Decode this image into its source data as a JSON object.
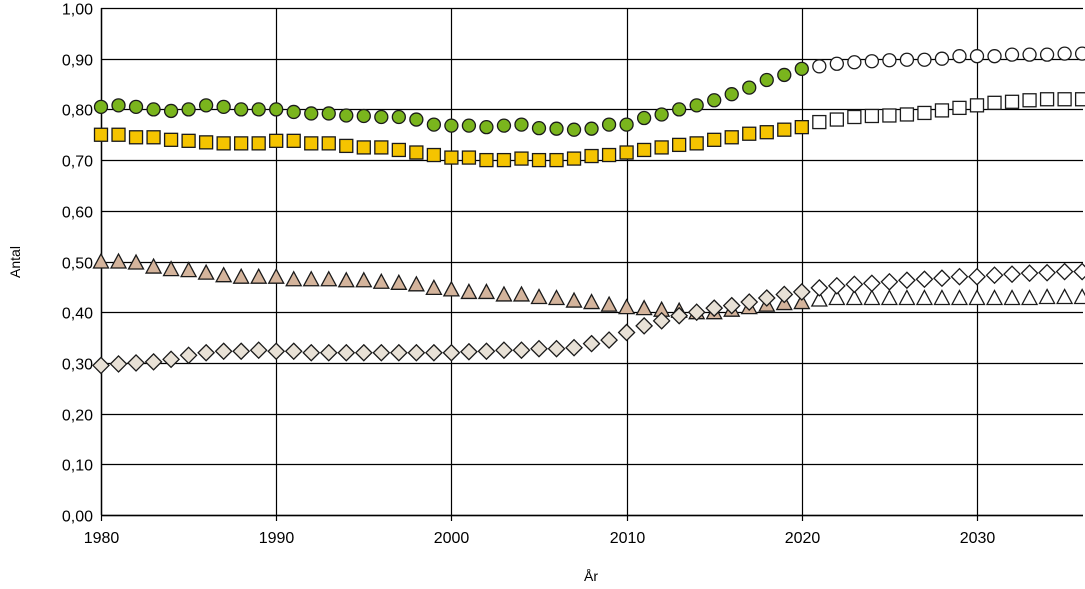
{
  "chart_data": {
    "type": "scatter",
    "xlabel": "År",
    "ylabel": "Antal",
    "xlim": [
      1980,
      2036
    ],
    "ylim": [
      0,
      1
    ],
    "xticks": [
      1980,
      1990,
      2000,
      2010,
      2020,
      2030
    ],
    "yticks": [
      0,
      0.1,
      0.2,
      0.3,
      0.4,
      0.5,
      0.6,
      0.7,
      0.8,
      0.9,
      1.0
    ],
    "ytick_labels": [
      "0,00",
      "0,10",
      "0,20",
      "0,30",
      "0,40",
      "0,50",
      "0,60",
      "0,70",
      "0,80",
      "0,90",
      "1,00"
    ],
    "grid": true,
    "legend": "none",
    "observed_until": 2020,
    "series": [
      {
        "marker": "circle",
        "color": "#7ab51d",
        "x": [
          1980,
          1981,
          1982,
          1983,
          1984,
          1985,
          1986,
          1987,
          1988,
          1989,
          1990,
          1991,
          1992,
          1993,
          1994,
          1995,
          1996,
          1997,
          1998,
          1999,
          2000,
          2001,
          2002,
          2003,
          2004,
          2005,
          2006,
          2007,
          2008,
          2009,
          2010,
          2011,
          2012,
          2013,
          2014,
          2015,
          2016,
          2017,
          2018,
          2019,
          2020,
          2021,
          2022,
          2023,
          2024,
          2025,
          2026,
          2027,
          2028,
          2029,
          2030,
          2031,
          2032,
          2033,
          2034,
          2035,
          2036
        ],
        "y": [
          0.805,
          0.808,
          0.805,
          0.8,
          0.797,
          0.8,
          0.808,
          0.805,
          0.8,
          0.8,
          0.8,
          0.795,
          0.792,
          0.792,
          0.788,
          0.787,
          0.785,
          0.785,
          0.78,
          0.77,
          0.768,
          0.768,
          0.765,
          0.768,
          0.77,
          0.763,
          0.762,
          0.76,
          0.762,
          0.77,
          0.77,
          0.783,
          0.79,
          0.8,
          0.808,
          0.818,
          0.83,
          0.843,
          0.858,
          0.868,
          0.88,
          0.885,
          0.89,
          0.893,
          0.895,
          0.897,
          0.898,
          0.898,
          0.9,
          0.905,
          0.905,
          0.905,
          0.908,
          0.908,
          0.908,
          0.91,
          0.91
        ]
      },
      {
        "marker": "square",
        "color": "#f5c400",
        "x": [
          1980,
          1981,
          1982,
          1983,
          1984,
          1985,
          1986,
          1987,
          1988,
          1989,
          1990,
          1991,
          1992,
          1993,
          1994,
          1995,
          1996,
          1997,
          1998,
          1999,
          2000,
          2001,
          2002,
          2003,
          2004,
          2005,
          2006,
          2007,
          2008,
          2009,
          2010,
          2011,
          2012,
          2013,
          2014,
          2015,
          2016,
          2017,
          2018,
          2019,
          2020,
          2021,
          2022,
          2023,
          2024,
          2025,
          2026,
          2027,
          2028,
          2029,
          2030,
          2031,
          2032,
          2033,
          2034,
          2035,
          2036
        ],
        "y": [
          0.75,
          0.75,
          0.745,
          0.745,
          0.74,
          0.738,
          0.735,
          0.733,
          0.733,
          0.733,
          0.738,
          0.738,
          0.733,
          0.733,
          0.728,
          0.725,
          0.725,
          0.72,
          0.715,
          0.71,
          0.705,
          0.705,
          0.7,
          0.7,
          0.703,
          0.7,
          0.7,
          0.703,
          0.708,
          0.71,
          0.715,
          0.72,
          0.725,
          0.73,
          0.733,
          0.74,
          0.745,
          0.752,
          0.755,
          0.76,
          0.765,
          0.775,
          0.78,
          0.785,
          0.787,
          0.788,
          0.79,
          0.793,
          0.798,
          0.803,
          0.808,
          0.813,
          0.815,
          0.818,
          0.82,
          0.82,
          0.82
        ]
      },
      {
        "marker": "triangle",
        "color": "#d4b49c",
        "x": [
          1980,
          1981,
          1982,
          1983,
          1984,
          1985,
          1986,
          1987,
          1988,
          1989,
          1990,
          1991,
          1992,
          1993,
          1994,
          1995,
          1996,
          1997,
          1998,
          1999,
          2000,
          2001,
          2002,
          2003,
          2004,
          2005,
          2006,
          2007,
          2008,
          2009,
          2010,
          2011,
          2012,
          2013,
          2014,
          2015,
          2016,
          2017,
          2018,
          2019,
          2020,
          2021,
          2022,
          2023,
          2024,
          2025,
          2026,
          2027,
          2028,
          2029,
          2030,
          2031,
          2032,
          2033,
          2034,
          2035,
          2036
        ],
        "y": [
          0.5,
          0.5,
          0.498,
          0.49,
          0.485,
          0.483,
          0.478,
          0.473,
          0.47,
          0.47,
          0.47,
          0.465,
          0.465,
          0.465,
          0.463,
          0.463,
          0.46,
          0.458,
          0.455,
          0.448,
          0.445,
          0.44,
          0.44,
          0.435,
          0.435,
          0.43,
          0.428,
          0.423,
          0.42,
          0.415,
          0.41,
          0.408,
          0.405,
          0.403,
          0.4,
          0.4,
          0.405,
          0.41,
          0.415,
          0.418,
          0.42,
          0.425,
          0.428,
          0.428,
          0.428,
          0.428,
          0.428,
          0.428,
          0.428,
          0.428,
          0.428,
          0.428,
          0.428,
          0.428,
          0.43,
          0.43,
          0.43
        ]
      },
      {
        "marker": "diamond",
        "color": "#e8e1d6",
        "x": [
          1980,
          1981,
          1982,
          1983,
          1984,
          1985,
          1986,
          1987,
          1988,
          1989,
          1990,
          1991,
          1992,
          1993,
          1994,
          1995,
          1996,
          1997,
          1998,
          1999,
          2000,
          2001,
          2002,
          2003,
          2004,
          2005,
          2006,
          2007,
          2008,
          2009,
          2010,
          2011,
          2012,
          2013,
          2014,
          2015,
          2016,
          2017,
          2018,
          2019,
          2020,
          2021,
          2022,
          2023,
          2024,
          2025,
          2026,
          2027,
          2028,
          2029,
          2030,
          2031,
          2032,
          2033,
          2034,
          2035,
          2036
        ],
        "y": [
          0.295,
          0.298,
          0.3,
          0.302,
          0.307,
          0.315,
          0.32,
          0.323,
          0.323,
          0.325,
          0.323,
          0.323,
          0.32,
          0.32,
          0.32,
          0.32,
          0.32,
          0.32,
          0.32,
          0.32,
          0.32,
          0.322,
          0.323,
          0.325,
          0.325,
          0.328,
          0.328,
          0.33,
          0.338,
          0.345,
          0.36,
          0.373,
          0.383,
          0.393,
          0.4,
          0.408,
          0.413,
          0.42,
          0.428,
          0.435,
          0.44,
          0.448,
          0.452,
          0.455,
          0.457,
          0.46,
          0.463,
          0.465,
          0.467,
          0.47,
          0.47,
          0.473,
          0.475,
          0.477,
          0.478,
          0.48,
          0.48
        ]
      }
    ]
  }
}
